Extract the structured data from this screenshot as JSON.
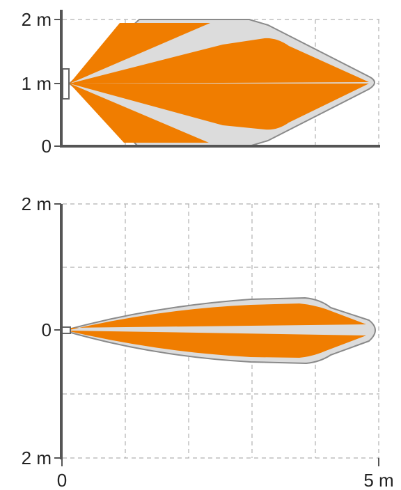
{
  "top_view": {
    "y_ticks": [
      "2 m",
      "1 m",
      "0"
    ]
  },
  "side_view": {
    "y_ticks": [
      "2 m",
      "0",
      "2 m"
    ],
    "x_ticks": [
      "0",
      "5 m"
    ]
  },
  "colors": {
    "zone_fill": "#f07d00",
    "zone_outline_fill": "#dcdcdc",
    "zone_outline_stroke": "#8a8a8a",
    "axis": "#555555",
    "grid": "#b0b0b0"
  }
}
